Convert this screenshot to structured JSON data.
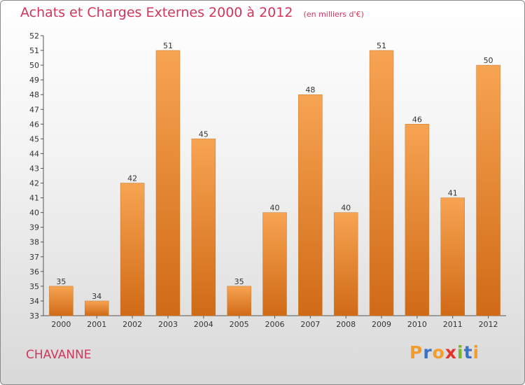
{
  "title": "Achats et Charges Externes 2000 à 2012",
  "unit": "(en milliers d'€)",
  "commune": "CHAVANNE",
  "logo": "Proxiti",
  "colors": {
    "title": "#d2365b",
    "bar_light": "#f7a452",
    "bar_dark": "#d06a16",
    "logo_letters": [
      "#f49b2a",
      "#3a73c4",
      "#f49b2a",
      "#e2322e",
      "#7bb52a",
      "#3a73c4",
      "#f49b2a"
    ]
  },
  "chart_data": {
    "type": "bar",
    "categories": [
      "2000",
      "2001",
      "2002",
      "2003",
      "2004",
      "2005",
      "2006",
      "2007",
      "2008",
      "2009",
      "2010",
      "2011",
      "2012"
    ],
    "values": [
      35,
      34,
      42,
      51,
      45,
      35,
      40,
      48,
      40,
      51,
      46,
      41,
      50
    ],
    "ylim": [
      33,
      52
    ],
    "yticks": [
      33,
      34,
      35,
      36,
      37,
      38,
      39,
      40,
      41,
      42,
      43,
      44,
      45,
      46,
      47,
      48,
      49,
      50,
      51,
      52
    ],
    "grid": false,
    "data_labels": true
  }
}
